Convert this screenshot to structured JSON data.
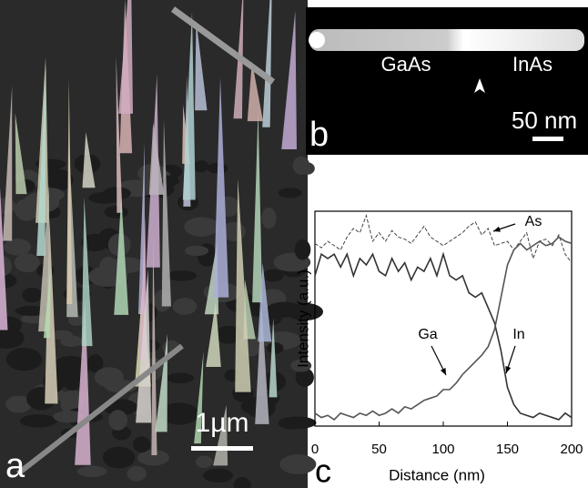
{
  "panels": {
    "a": {
      "label": "a",
      "scale_bar": "1µm"
    },
    "b": {
      "label": "b",
      "left_text": "GaAs",
      "right_text": "InAs",
      "scale_bar": "50 nm"
    }
  },
  "chart_data": {
    "type": "line",
    "label": "c",
    "x_label": "Distance (nm)",
    "y_label": "Intensity (a.u.)",
    "xlim": [
      0,
      200
    ],
    "xticks": [
      0,
      50,
      100,
      150,
      200
    ],
    "ylim": [
      0,
      100
    ],
    "x": [
      0,
      5,
      10,
      15,
      20,
      25,
      30,
      35,
      40,
      45,
      50,
      55,
      60,
      65,
      70,
      75,
      80,
      85,
      90,
      95,
      100,
      105,
      110,
      115,
      120,
      125,
      130,
      135,
      140,
      145,
      150,
      155,
      160,
      165,
      170,
      175,
      180,
      185,
      190,
      195,
      200
    ],
    "series": [
      {
        "name": "As",
        "color": "#444444",
        "style": "dashed",
        "values": [
          85,
          83,
          86,
          84,
          82,
          88,
          92,
          90,
          98,
          86,
          90,
          86,
          91,
          88,
          87,
          85,
          89,
          93,
          88,
          86,
          84,
          86,
          88,
          90,
          93,
          95,
          89,
          92,
          84,
          85,
          86,
          82,
          86,
          90,
          78,
          86,
          87,
          84,
          89,
          80,
          76
        ]
      },
      {
        "name": "Ga",
        "color": "#333333",
        "style": "solid",
        "values": [
          70,
          80,
          78,
          80,
          74,
          80,
          70,
          78,
          75,
          80,
          72,
          70,
          78,
          72,
          76,
          68,
          74,
          72,
          78,
          70,
          80,
          70,
          68,
          70,
          62,
          60,
          62,
          55,
          48,
          35,
          18,
          10,
          6,
          5,
          4,
          6,
          5,
          4,
          3,
          6,
          4
        ]
      },
      {
        "name": "In",
        "color": "#555555",
        "style": "solid",
        "values": [
          6,
          4,
          5,
          3,
          6,
          5,
          4,
          6,
          5,
          7,
          5,
          6,
          8,
          6,
          9,
          8,
          10,
          12,
          13,
          14,
          17,
          17,
          20,
          24,
          27,
          30,
          33,
          37,
          45,
          60,
          75,
          82,
          85,
          82,
          84,
          86,
          84,
          85,
          88,
          86,
          85
        ]
      }
    ]
  }
}
